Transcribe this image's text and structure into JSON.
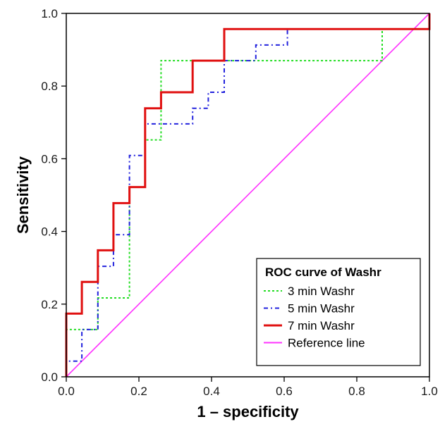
{
  "chart_data": {
    "type": "line",
    "xlabel": "1 – specificity",
    "ylabel": "Sensitivity",
    "xlim": [
      0,
      1
    ],
    "ylim": [
      0,
      1
    ],
    "xticks": [
      "0.0",
      "0.2",
      "0.4",
      "0.6",
      "0.8",
      "1.0"
    ],
    "yticks": [
      "0.0",
      "0.2",
      "0.4",
      "0.6",
      "0.8",
      "1.0"
    ],
    "grid": false,
    "legend": {
      "title": "ROC curve of Washr",
      "placement": "bottom-right"
    },
    "series": [
      {
        "name": "3 min Washr",
        "color": "#22dd22",
        "dash": "dotted",
        "points": [
          [
            0,
            0
          ],
          [
            0,
            0.13
          ],
          [
            0.087,
            0.13
          ],
          [
            0.087,
            0.217
          ],
          [
            0.174,
            0.217
          ],
          [
            0.174,
            0.522
          ],
          [
            0.217,
            0.522
          ],
          [
            0.217,
            0.652
          ],
          [
            0.261,
            0.652
          ],
          [
            0.261,
            0.87
          ],
          [
            0.87,
            0.87
          ],
          [
            0.87,
            0.957
          ],
          [
            1,
            0.957
          ],
          [
            1,
            1
          ]
        ]
      },
      {
        "name": "5 min Washr",
        "color": "#2222dd",
        "dash": "dashdot",
        "points": [
          [
            0,
            0
          ],
          [
            0,
            0.043
          ],
          [
            0.043,
            0.043
          ],
          [
            0.043,
            0.13
          ],
          [
            0.087,
            0.13
          ],
          [
            0.087,
            0.304
          ],
          [
            0.13,
            0.304
          ],
          [
            0.13,
            0.391
          ],
          [
            0.174,
            0.391
          ],
          [
            0.174,
            0.609
          ],
          [
            0.217,
            0.609
          ],
          [
            0.217,
            0.696
          ],
          [
            0.348,
            0.696
          ],
          [
            0.348,
            0.739
          ],
          [
            0.391,
            0.739
          ],
          [
            0.391,
            0.783
          ],
          [
            0.435,
            0.783
          ],
          [
            0.435,
            0.87
          ],
          [
            0.522,
            0.87
          ],
          [
            0.522,
            0.913
          ],
          [
            0.609,
            0.913
          ],
          [
            0.609,
            0.957
          ],
          [
            1,
            0.957
          ],
          [
            1,
            1
          ]
        ]
      },
      {
        "name": "7 min Washr",
        "color": "#e01010",
        "dash": "solid",
        "points": [
          [
            0,
            0
          ],
          [
            0,
            0.174
          ],
          [
            0.043,
            0.174
          ],
          [
            0.043,
            0.261
          ],
          [
            0.087,
            0.261
          ],
          [
            0.087,
            0.348
          ],
          [
            0.13,
            0.348
          ],
          [
            0.13,
            0.478
          ],
          [
            0.174,
            0.478
          ],
          [
            0.174,
            0.522
          ],
          [
            0.217,
            0.522
          ],
          [
            0.217,
            0.739
          ],
          [
            0.261,
            0.739
          ],
          [
            0.261,
            0.783
          ],
          [
            0.348,
            0.783
          ],
          [
            0.348,
            0.87
          ],
          [
            0.435,
            0.87
          ],
          [
            0.435,
            0.957
          ],
          [
            1,
            0.957
          ],
          [
            1,
            1
          ]
        ]
      },
      {
        "name": "Reference line",
        "color": "#ff33ff",
        "dash": "solid",
        "points": [
          [
            0,
            0
          ],
          [
            1,
            1
          ]
        ]
      }
    ]
  }
}
